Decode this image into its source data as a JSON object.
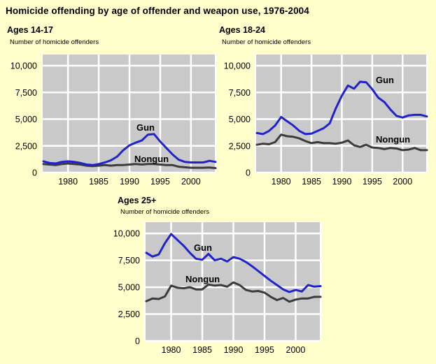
{
  "title": "Homicide offending by age of offender and weapon use, 1976-2004",
  "colors": {
    "background": "#FFFFCC",
    "plot_bg": "#C9C9C9",
    "grid": "#FFFFFF",
    "gun": "#2222CC",
    "nongun": "#3B3B3B",
    "text": "#000000"
  },
  "chart_data": [
    {
      "type": "line",
      "title": "Ages 14-17",
      "ylabel": "Number of homicide offenders",
      "xlim": [
        1976,
        2004
      ],
      "ylim": [
        0,
        11050
      ],
      "grid": true,
      "legend_position": "inline-labels",
      "x": [
        1976,
        1977,
        1978,
        1979,
        1980,
        1981,
        1982,
        1983,
        1984,
        1985,
        1986,
        1987,
        1988,
        1989,
        1990,
        1991,
        1992,
        1993,
        1994,
        1995,
        1996,
        1997,
        1998,
        1999,
        2000,
        2001,
        2002,
        2003,
        2004
      ],
      "yticks": [
        {
          "v": 0,
          "label": "0"
        },
        {
          "v": 2500,
          "label": "2,500"
        },
        {
          "v": 5000,
          "label": "5,000"
        },
        {
          "v": 7500,
          "label": "7,500"
        },
        {
          "v": 10000,
          "label": "10,000"
        }
      ],
      "xticks": [
        {
          "v": 1980,
          "label": "1980"
        },
        {
          "v": 1985,
          "label": "1985"
        },
        {
          "v": 1990,
          "label": "1990"
        },
        {
          "v": 1995,
          "label": "1995"
        },
        {
          "v": 2000,
          "label": "2000"
        }
      ],
      "series": [
        {
          "name": "Gun",
          "color_key": "gun",
          "values": [
            1050,
            900,
            850,
            1000,
            1050,
            1000,
            900,
            750,
            700,
            800,
            950,
            1150,
            1500,
            2100,
            2550,
            2800,
            3000,
            3550,
            3600,
            2900,
            2300,
            1700,
            1200,
            1000,
            950,
            950,
            950,
            1100,
            1000
          ]
        },
        {
          "name": "Nongun",
          "color_key": "nongun",
          "values": [
            800,
            750,
            700,
            800,
            850,
            800,
            750,
            650,
            600,
            650,
            700,
            650,
            700,
            700,
            750,
            800,
            750,
            800,
            800,
            750,
            700,
            700,
            550,
            500,
            450,
            450,
            450,
            480,
            420
          ]
        }
      ]
    },
    {
      "type": "line",
      "title": "Ages 18-24",
      "ylabel": "Number of homicide offenders",
      "xlim": [
        1976,
        2004
      ],
      "ylim": [
        0,
        11050
      ],
      "grid": true,
      "legend_position": "inline-labels",
      "x": [
        1976,
        1977,
        1978,
        1979,
        1980,
        1981,
        1982,
        1983,
        1984,
        1985,
        1986,
        1987,
        1988,
        1989,
        1990,
        1991,
        1992,
        1993,
        1994,
        1995,
        1996,
        1997,
        1998,
        1999,
        2000,
        2001,
        2002,
        2003,
        2004
      ],
      "yticks": [
        {
          "v": 0,
          "label": "0"
        },
        {
          "v": 2500,
          "label": "2,500"
        },
        {
          "v": 5000,
          "label": "5,000"
        },
        {
          "v": 7500,
          "label": "7,500"
        },
        {
          "v": 10000,
          "label": "10,000"
        }
      ],
      "xticks": [
        {
          "v": 1980,
          "label": "1980"
        },
        {
          "v": 1985,
          "label": "1985"
        },
        {
          "v": 1990,
          "label": "1990"
        },
        {
          "v": 1995,
          "label": "1995"
        },
        {
          "v": 2000,
          "label": "2000"
        }
      ],
      "series": [
        {
          "name": "Gun",
          "color_key": "gun",
          "values": [
            3700,
            3600,
            3900,
            4400,
            5200,
            4800,
            4400,
            3900,
            3600,
            3650,
            3900,
            4150,
            4600,
            6000,
            7200,
            8150,
            7850,
            8500,
            8450,
            7800,
            7000,
            6600,
            5900,
            5300,
            5150,
            5350,
            5400,
            5400,
            5250
          ]
        },
        {
          "name": "Nongun",
          "color_key": "nongun",
          "values": [
            2600,
            2700,
            2650,
            2850,
            3550,
            3400,
            3350,
            3200,
            2950,
            2750,
            2850,
            2750,
            2750,
            2700,
            2800,
            3000,
            2550,
            2400,
            2600,
            2350,
            2300,
            2200,
            2300,
            2250,
            2100,
            2150,
            2300,
            2100,
            2100
          ]
        }
      ]
    },
    {
      "type": "line",
      "title": "Ages 25+",
      "ylabel": "Number of homicide offenders",
      "xlim": [
        1976,
        2004
      ],
      "ylim": [
        0,
        11050
      ],
      "grid": true,
      "legend_position": "inline-labels",
      "x": [
        1976,
        1977,
        1978,
        1979,
        1980,
        1981,
        1982,
        1983,
        1984,
        1985,
        1986,
        1987,
        1988,
        1989,
        1990,
        1991,
        1992,
        1993,
        1994,
        1995,
        1996,
        1997,
        1998,
        1999,
        2000,
        2001,
        2002,
        2003,
        2004
      ],
      "yticks": [
        {
          "v": 0,
          "label": "0"
        },
        {
          "v": 2500,
          "label": "2,500"
        },
        {
          "v": 5000,
          "label": "5,000"
        },
        {
          "v": 7500,
          "label": "7,500"
        },
        {
          "v": 10000,
          "label": "10,000"
        }
      ],
      "xticks": [
        {
          "v": 1980,
          "label": "1980"
        },
        {
          "v": 1985,
          "label": "1985"
        },
        {
          "v": 1990,
          "label": "1990"
        },
        {
          "v": 1995,
          "label": "1995"
        },
        {
          "v": 2000,
          "label": "2000"
        }
      ],
      "series": [
        {
          "name": "Gun",
          "color_key": "gun",
          "values": [
            8200,
            7850,
            8050,
            9100,
            9950,
            9400,
            8850,
            8200,
            7650,
            7550,
            8100,
            7500,
            7650,
            7400,
            7800,
            7650,
            7350,
            6950,
            6500,
            6050,
            5600,
            5200,
            4800,
            4550,
            4750,
            4600,
            5200,
            5050,
            5100
          ]
        },
        {
          "name": "Nongun",
          "color_key": "nongun",
          "values": [
            3700,
            3950,
            3900,
            4150,
            5150,
            4950,
            4900,
            5000,
            4800,
            4800,
            5250,
            5150,
            5200,
            5050,
            5450,
            5200,
            4750,
            4600,
            4650,
            4500,
            4100,
            3800,
            4000,
            3650,
            3850,
            3950,
            3950,
            4100,
            4100
          ]
        }
      ]
    }
  ]
}
